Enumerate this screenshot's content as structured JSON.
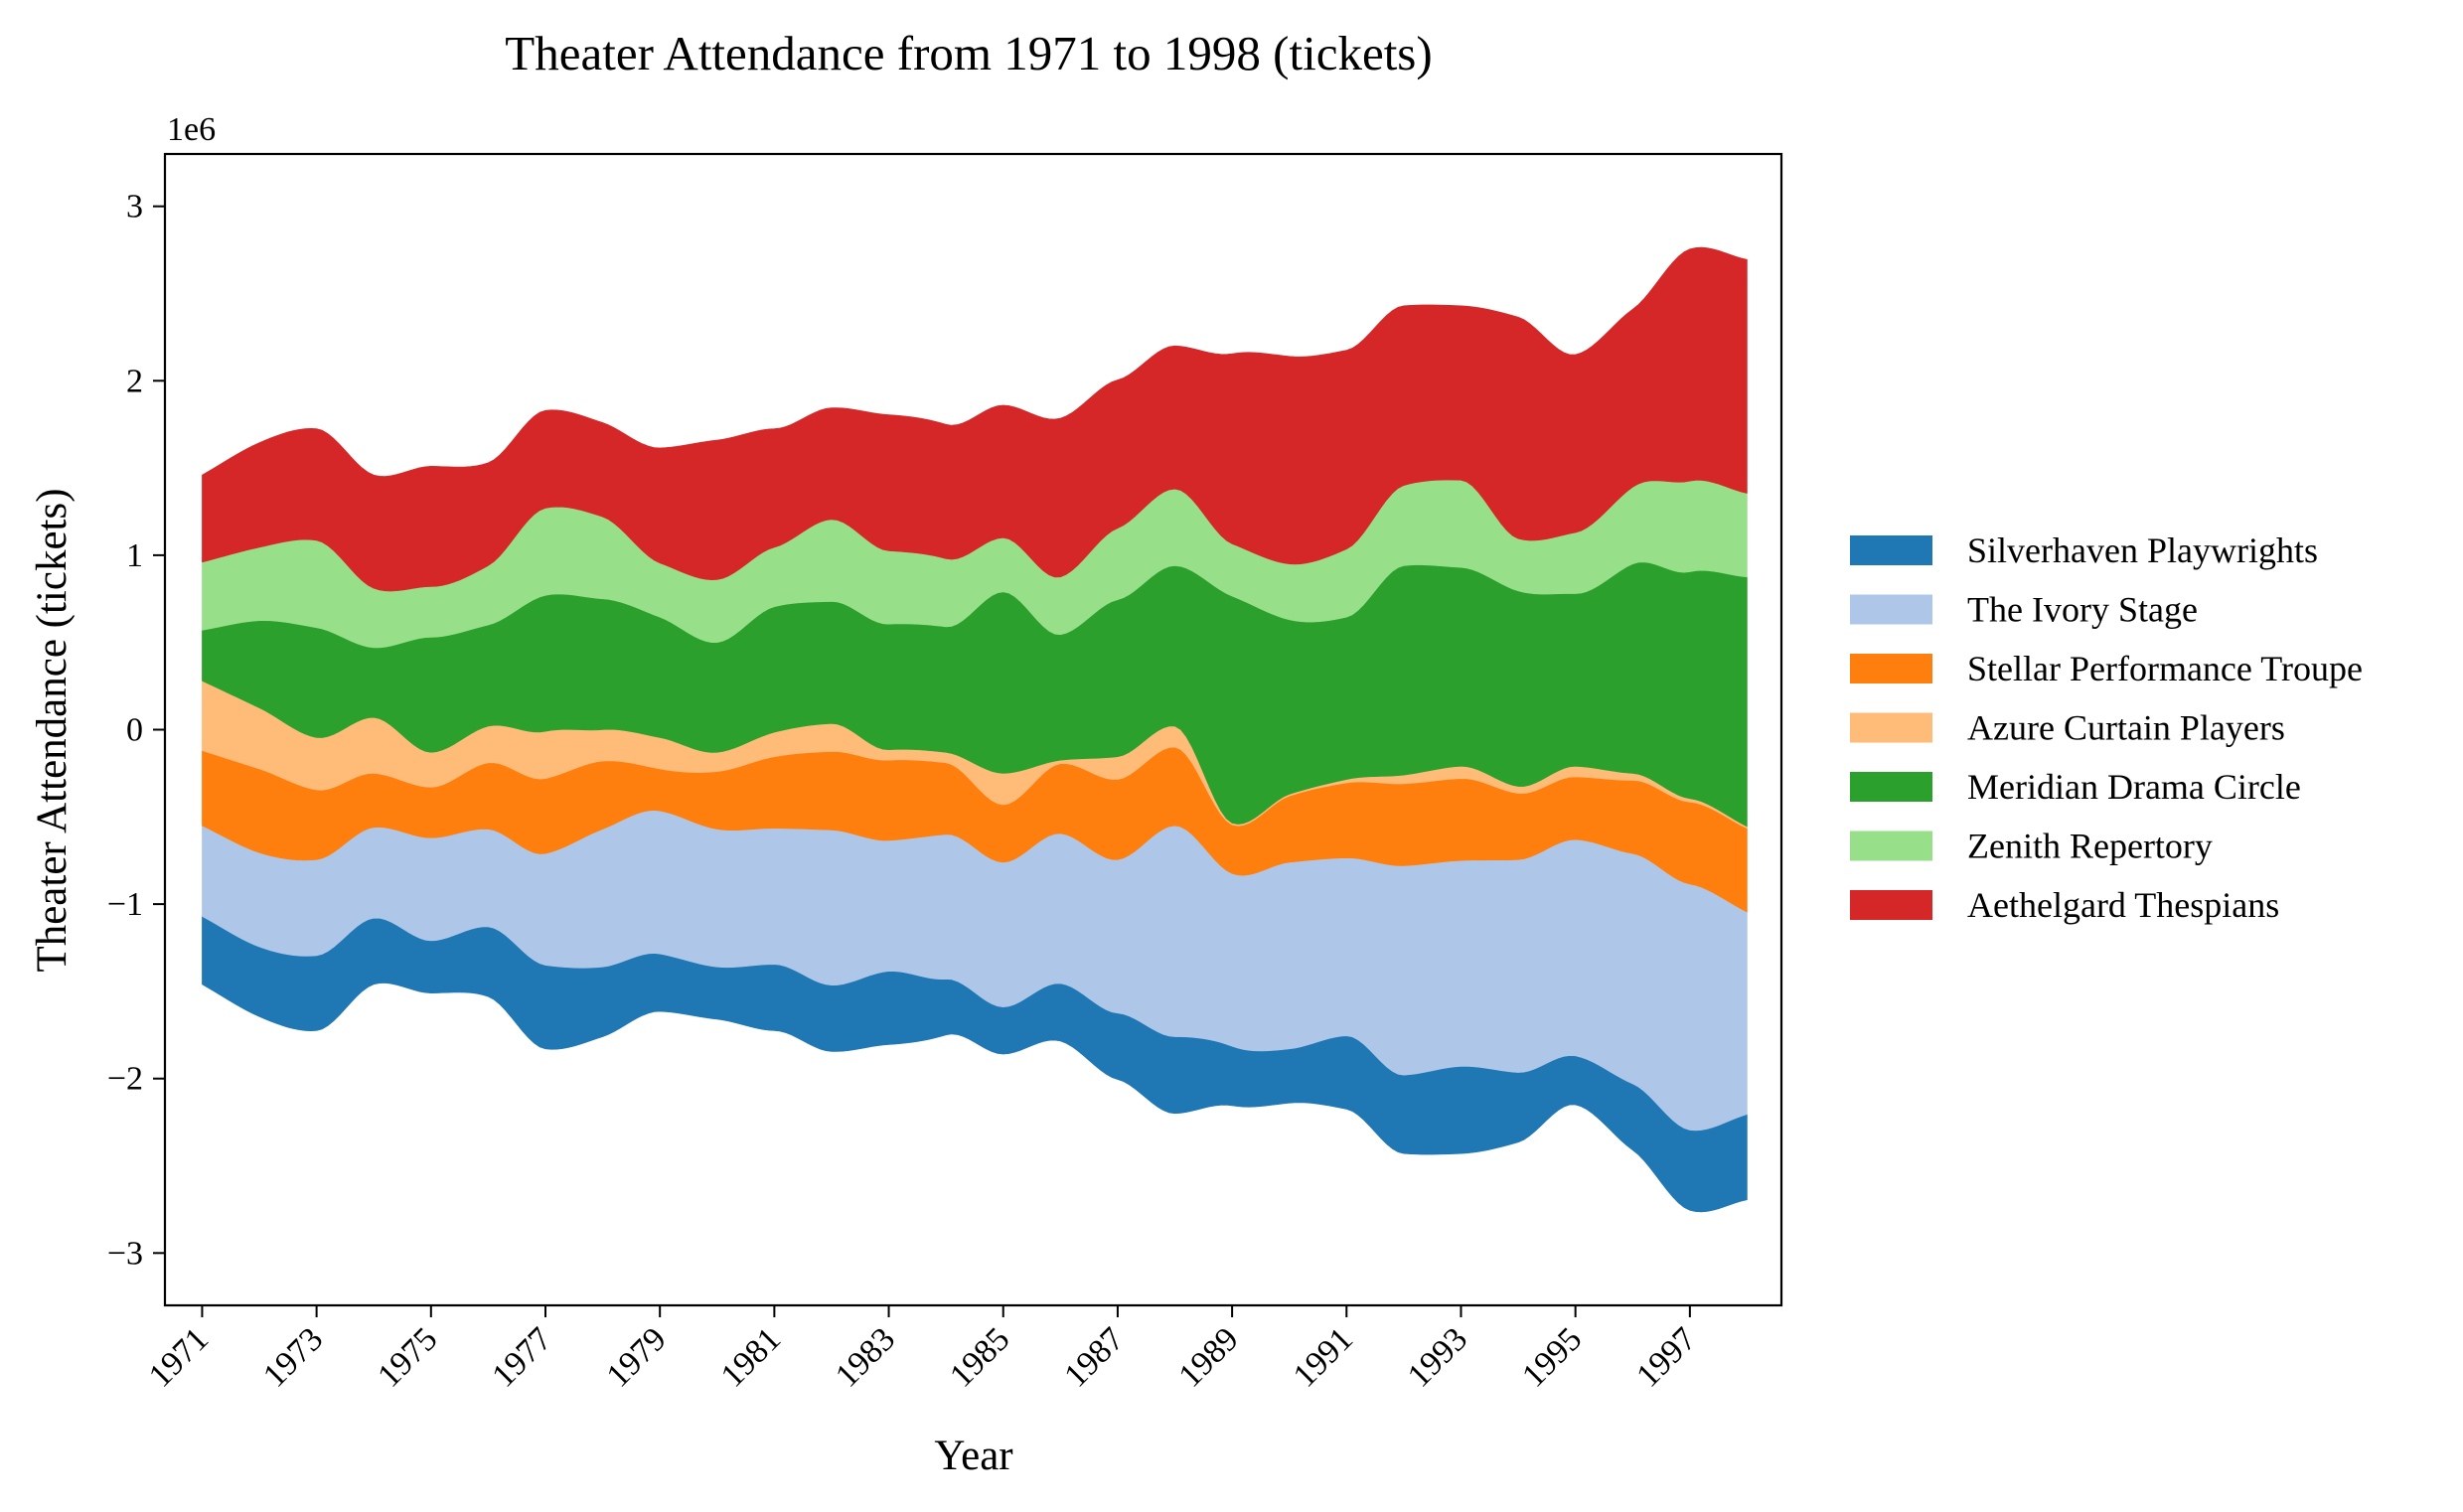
{
  "chart_data": {
    "type": "area",
    "subtype": "streamgraph (symmetric wiggle baseline, smoothed)",
    "title": "Theater Attendance from 1971 to 1998 (tickets)",
    "xlabel": "Year",
    "ylabel": "Theater Attendance (tickets)",
    "y_scale_label": "1e6",
    "ylim": [
      -3300000,
      3300000
    ],
    "yticks": [
      -3000000,
      -2000000,
      -1000000,
      0,
      1000000,
      2000000,
      3000000
    ],
    "ytick_labels": [
      "−3",
      "−2",
      "−1",
      "0",
      "1",
      "2",
      "3"
    ],
    "xticks": [
      1971,
      1973,
      1975,
      1977,
      1979,
      1981,
      1983,
      1985,
      1987,
      1989,
      1991,
      1993,
      1995,
      1997
    ],
    "xtick_labels": [
      "1971",
      "1973",
      "1975",
      "1977",
      "1979",
      "1981",
      "1983",
      "1985",
      "1987",
      "1989",
      "1991",
      "1993",
      "1995",
      "1997"
    ],
    "xlim": [
      1970.35,
      1998.6
    ],
    "grid": false,
    "legend_position": "right",
    "x": [
      1971,
      1972,
      1973,
      1974,
      1975,
      1976,
      1977,
      1978,
      1979,
      1980,
      1981,
      1982,
      1983,
      1984,
      1985,
      1986,
      1987,
      1988,
      1989,
      1990,
      1991,
      1992,
      1993,
      1994,
      1995,
      1996,
      1997,
      1998
    ],
    "series": [
      {
        "name": "Silverhaven Playwrights",
        "color": "#1f77b4",
        "values": [
          390000,
          400000,
          430000,
          380000,
          300000,
          400000,
          480000,
          400000,
          330000,
          300000,
          380000,
          380000,
          420000,
          320000,
          270000,
          330000,
          380000,
          440000,
          340000,
          310000,
          420000,
          450000,
          500000,
          400000,
          280000,
          380000,
          460000,
          490000
        ]
      },
      {
        "name": "The Ivory Stage",
        "color": "#aec7e8",
        "values": [
          520000,
          540000,
          550000,
          520000,
          590000,
          560000,
          640000,
          790000,
          820000,
          790000,
          780000,
          890000,
          750000,
          830000,
          830000,
          860000,
          880000,
          1210000,
          990000,
          1070000,
          1020000,
          1200000,
          1180000,
          1220000,
          1240000,
          1320000,
          1410000,
          1160000
        ]
      },
      {
        "name": "Stellar Performance Troupe",
        "color": "#ff7f0e",
        "values": [
          430000,
          480000,
          400000,
          310000,
          290000,
          380000,
          430000,
          390000,
          240000,
          330000,
          410000,
          450000,
          460000,
          410000,
          330000,
          400000,
          460000,
          450000,
          280000,
          380000,
          430000,
          470000,
          470000,
          380000,
          360000,
          420000,
          470000,
          480000
        ]
      },
      {
        "name": "Azure Curtain Players",
        "color": "#ffbb78",
        "values": [
          400000,
          350000,
          300000,
          320000,
          200000,
          210000,
          270000,
          180000,
          180000,
          110000,
          140000,
          160000,
          60000,
          60000,
          180000,
          20000,
          130000,
          120000,
          10000,
          10000,
          20000,
          50000,
          70000,
          40000,
          60000,
          40000,
          20000,
          10000
        ]
      },
      {
        "name": "Meridian Drama Circle",
        "color": "#2ca02c",
        "values": [
          290000,
          500000,
          630000,
          400000,
          660000,
          580000,
          780000,
          750000,
          690000,
          630000,
          720000,
          700000,
          720000,
          720000,
          1040000,
          720000,
          900000,
          920000,
          1300000,
          1000000,
          930000,
          1200000,
          1140000,
          1120000,
          990000,
          1200000,
          1300000,
          1430000
        ]
      },
      {
        "name": "Zenith Repertory",
        "color": "#98df8a",
        "values": [
          390000,
          420000,
          500000,
          340000,
          290000,
          340000,
          500000,
          470000,
          310000,
          360000,
          340000,
          470000,
          420000,
          390000,
          310000,
          330000,
          410000,
          440000,
          300000,
          320000,
          390000,
          460000,
          500000,
          300000,
          350000,
          440000,
          520000,
          480000
        ]
      },
      {
        "name": "Aethelgard Thespians",
        "color": "#d62728",
        "values": [
          500000,
          600000,
          640000,
          650000,
          690000,
          590000,
          560000,
          540000,
          660000,
          800000,
          680000,
          640000,
          780000,
          770000,
          760000,
          910000,
          850000,
          820000,
          1090000,
          1190000,
          1140000,
          1030000,
          1000000,
          1270000,
          1020000,
          1020000,
          1330000,
          1340000
        ]
      }
    ]
  }
}
